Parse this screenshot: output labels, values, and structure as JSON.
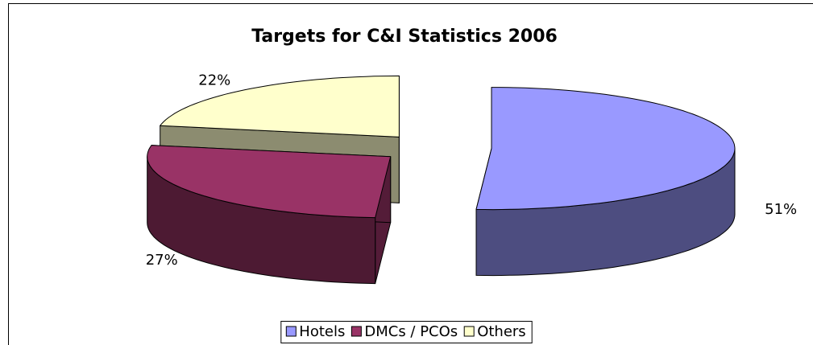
{
  "chart_data": {
    "type": "pie3d",
    "title": "Targets for C&I Statistics 2006",
    "categories": [
      "Hotels",
      "DMCs / PCOs",
      "Others"
    ],
    "values": [
      51,
      27,
      22
    ],
    "value_labels": [
      "51%",
      "27%",
      "22%"
    ],
    "colors": [
      "#9999ff",
      "#993366",
      "#ffffcc"
    ],
    "legend": "bottom"
  }
}
